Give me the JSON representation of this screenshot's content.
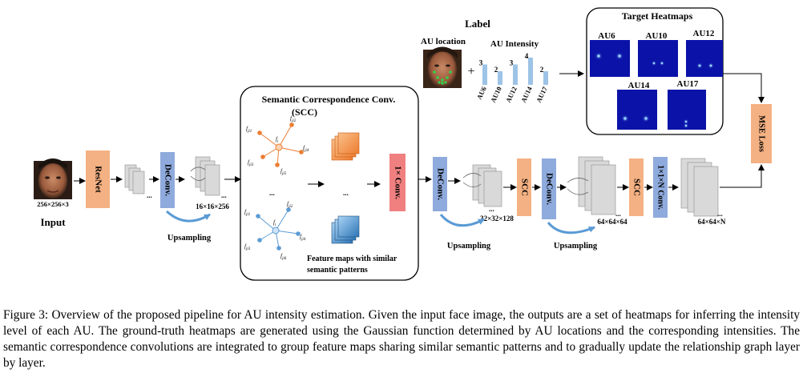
{
  "labels": {
    "label_title": "Label",
    "au_location": "AU location",
    "au_intensity": "AU Intensity",
    "plus": "+",
    "target_heatmaps": "Target Heatmaps",
    "scc_title_line1": "Semantic Correspondence Conv.",
    "scc_title_line2": "(SCC)",
    "input_dims": "256×256×3",
    "input_label": "Input",
    "resnet": "ResNet",
    "deconv": "DeConv.",
    "conv1x1": "1× Conv.",
    "scc": "SCC",
    "conv1x1n": "1×1×N Conv.",
    "mse_loss": "MSE Loss",
    "upsampling": "Upsampling",
    "dim_16": "16×16×256",
    "dim_32": "32×32×128",
    "dim_64a": "64×64×64",
    "dim_64n": "64×64×N",
    "ellipsis": "...",
    "fmaps_line1": "Feature maps with  similar",
    "fmaps_line2": "semantic patterns",
    "node_center": "f",
    "node_center_sub": "i",
    "node_a": "f",
    "node_a_sub": "ji1",
    "node_b": "f",
    "node_b_sub": "ji2",
    "node_c": "f",
    "node_c_sub": "ji3",
    "node_d": "f",
    "node_d_sub": "ji4",
    "node_e": "f",
    "node_e_sub": "ji5",
    "node_f": "f",
    "node_f_sub": "ji6"
  },
  "heatmaps": [
    {
      "label": "AU6"
    },
    {
      "label": "AU10"
    },
    {
      "label": "AU12"
    },
    {
      "label": "AU14"
    },
    {
      "label": "AU17"
    }
  ],
  "chart_data": {
    "type": "bar",
    "title": "AU Intensity",
    "categories": [
      "AU6",
      "AU10",
      "AU12",
      "AU14",
      "AU17"
    ],
    "values": [
      3,
      2,
      3,
      4,
      2
    ],
    "ylim": [
      0,
      5
    ]
  },
  "caption": "Figure 3: Overview of the proposed pipeline for AU intensity estimation. Given the input face image, the outputs are a set of heatmaps for inferring the intensity level of each AU. The ground-truth heatmaps are generated using the Gaussian function determined by AU locations and the corresponding intensities. The semantic correspondence convolutions are integrated to group feature maps sharing similar semantic patterns and to gradually update the relationship graph layer by layer.",
  "colors": {
    "resnet": "#f4b183",
    "deconv": "#8faadc",
    "conv": "#f08080",
    "scc": "#f4b183",
    "bars": "#9dc3e6",
    "heatmap": "#0b12a8",
    "orange_node": "#ed7d31",
    "blue_node": "#5b9bd5"
  }
}
